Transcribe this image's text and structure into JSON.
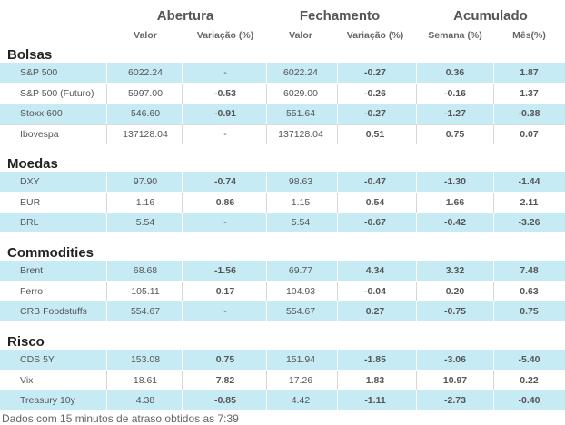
{
  "headers": {
    "abertura": "Abertura",
    "fechamento": "Fechamento",
    "acumulado": "Acumulado",
    "valor": "Valor",
    "variacao": "Variação (%)",
    "semana": "Semana (%)",
    "mes": "Mês(%)"
  },
  "sections": [
    {
      "title": "Bolsas",
      "rows": [
        {
          "name": "S&P 500",
          "open": "6022.24",
          "open_chg": "-",
          "close": "6022.24",
          "close_chg": "-0.27",
          "week": "0.36",
          "month": "1.87"
        },
        {
          "name": "S&P 500 (Futuro)",
          "open": "5997.00",
          "open_chg": "-0.53",
          "close": "6029.00",
          "close_chg": "-0.26",
          "week": "-0.16",
          "month": "1.37"
        },
        {
          "name": "Stoxx 600",
          "open": "546.60",
          "open_chg": "-0.91",
          "close": "551.64",
          "close_chg": "-0.27",
          "week": "-1.27",
          "month": "-0.38"
        },
        {
          "name": "Ibovespa",
          "open": "137128.04",
          "open_chg": "-",
          "close": "137128.04",
          "close_chg": "0.51",
          "week": "0.75",
          "month": "0.07"
        }
      ]
    },
    {
      "title": "Moedas",
      "rows": [
        {
          "name": "DXY",
          "open": "97.90",
          "open_chg": "-0.74",
          "close": "98.63",
          "close_chg": "-0.47",
          "week": "-1.30",
          "month": "-1.44"
        },
        {
          "name": "EUR",
          "open": "1.16",
          "open_chg": "0.86",
          "close": "1.15",
          "close_chg": "0.54",
          "week": "1.66",
          "month": "2.11"
        },
        {
          "name": "BRL",
          "open": "5.54",
          "open_chg": "-",
          "close": "5.54",
          "close_chg": "-0.67",
          "week": "-0.42",
          "month": "-3.26"
        }
      ]
    },
    {
      "title": "Commodities",
      "rows": [
        {
          "name": "Brent",
          "open": "68.68",
          "open_chg": "-1.56",
          "close": "69.77",
          "close_chg": "4.34",
          "week": "3.32",
          "month": "7.48"
        },
        {
          "name": "Ferro",
          "open": "105.11",
          "open_chg": "0.17",
          "close": "104.93",
          "close_chg": "-0.04",
          "week": "0.20",
          "month": "0.63"
        },
        {
          "name": "CRB Foodstuffs",
          "open": "554.67",
          "open_chg": "-",
          "close": "554.67",
          "close_chg": "0.27",
          "week": "-0.75",
          "month": "0.75"
        }
      ]
    },
    {
      "title": "Risco",
      "rows": [
        {
          "name": "CDS 5Y",
          "open": "153.08",
          "open_chg": "0.75",
          "close": "151.94",
          "close_chg": "-1.85",
          "week": "-3.06",
          "month": "-5.40"
        },
        {
          "name": "Vix",
          "open": "18.61",
          "open_chg": "7.82",
          "close": "17.26",
          "close_chg": "1.83",
          "week": "10.97",
          "month": "0.22"
        },
        {
          "name": "Treasury 10y",
          "open": "4.38",
          "open_chg": "-0.85",
          "close": "4.42",
          "close_chg": "-1.11",
          "week": "-2.73",
          "month": "-0.40"
        }
      ]
    }
  ],
  "footer": "Dados com 15 minutos de atraso obtidos as 7:39",
  "colors": {
    "positive": "#3c63b8",
    "negative": "#a3143f",
    "row_alt": "#c7ebf4"
  }
}
